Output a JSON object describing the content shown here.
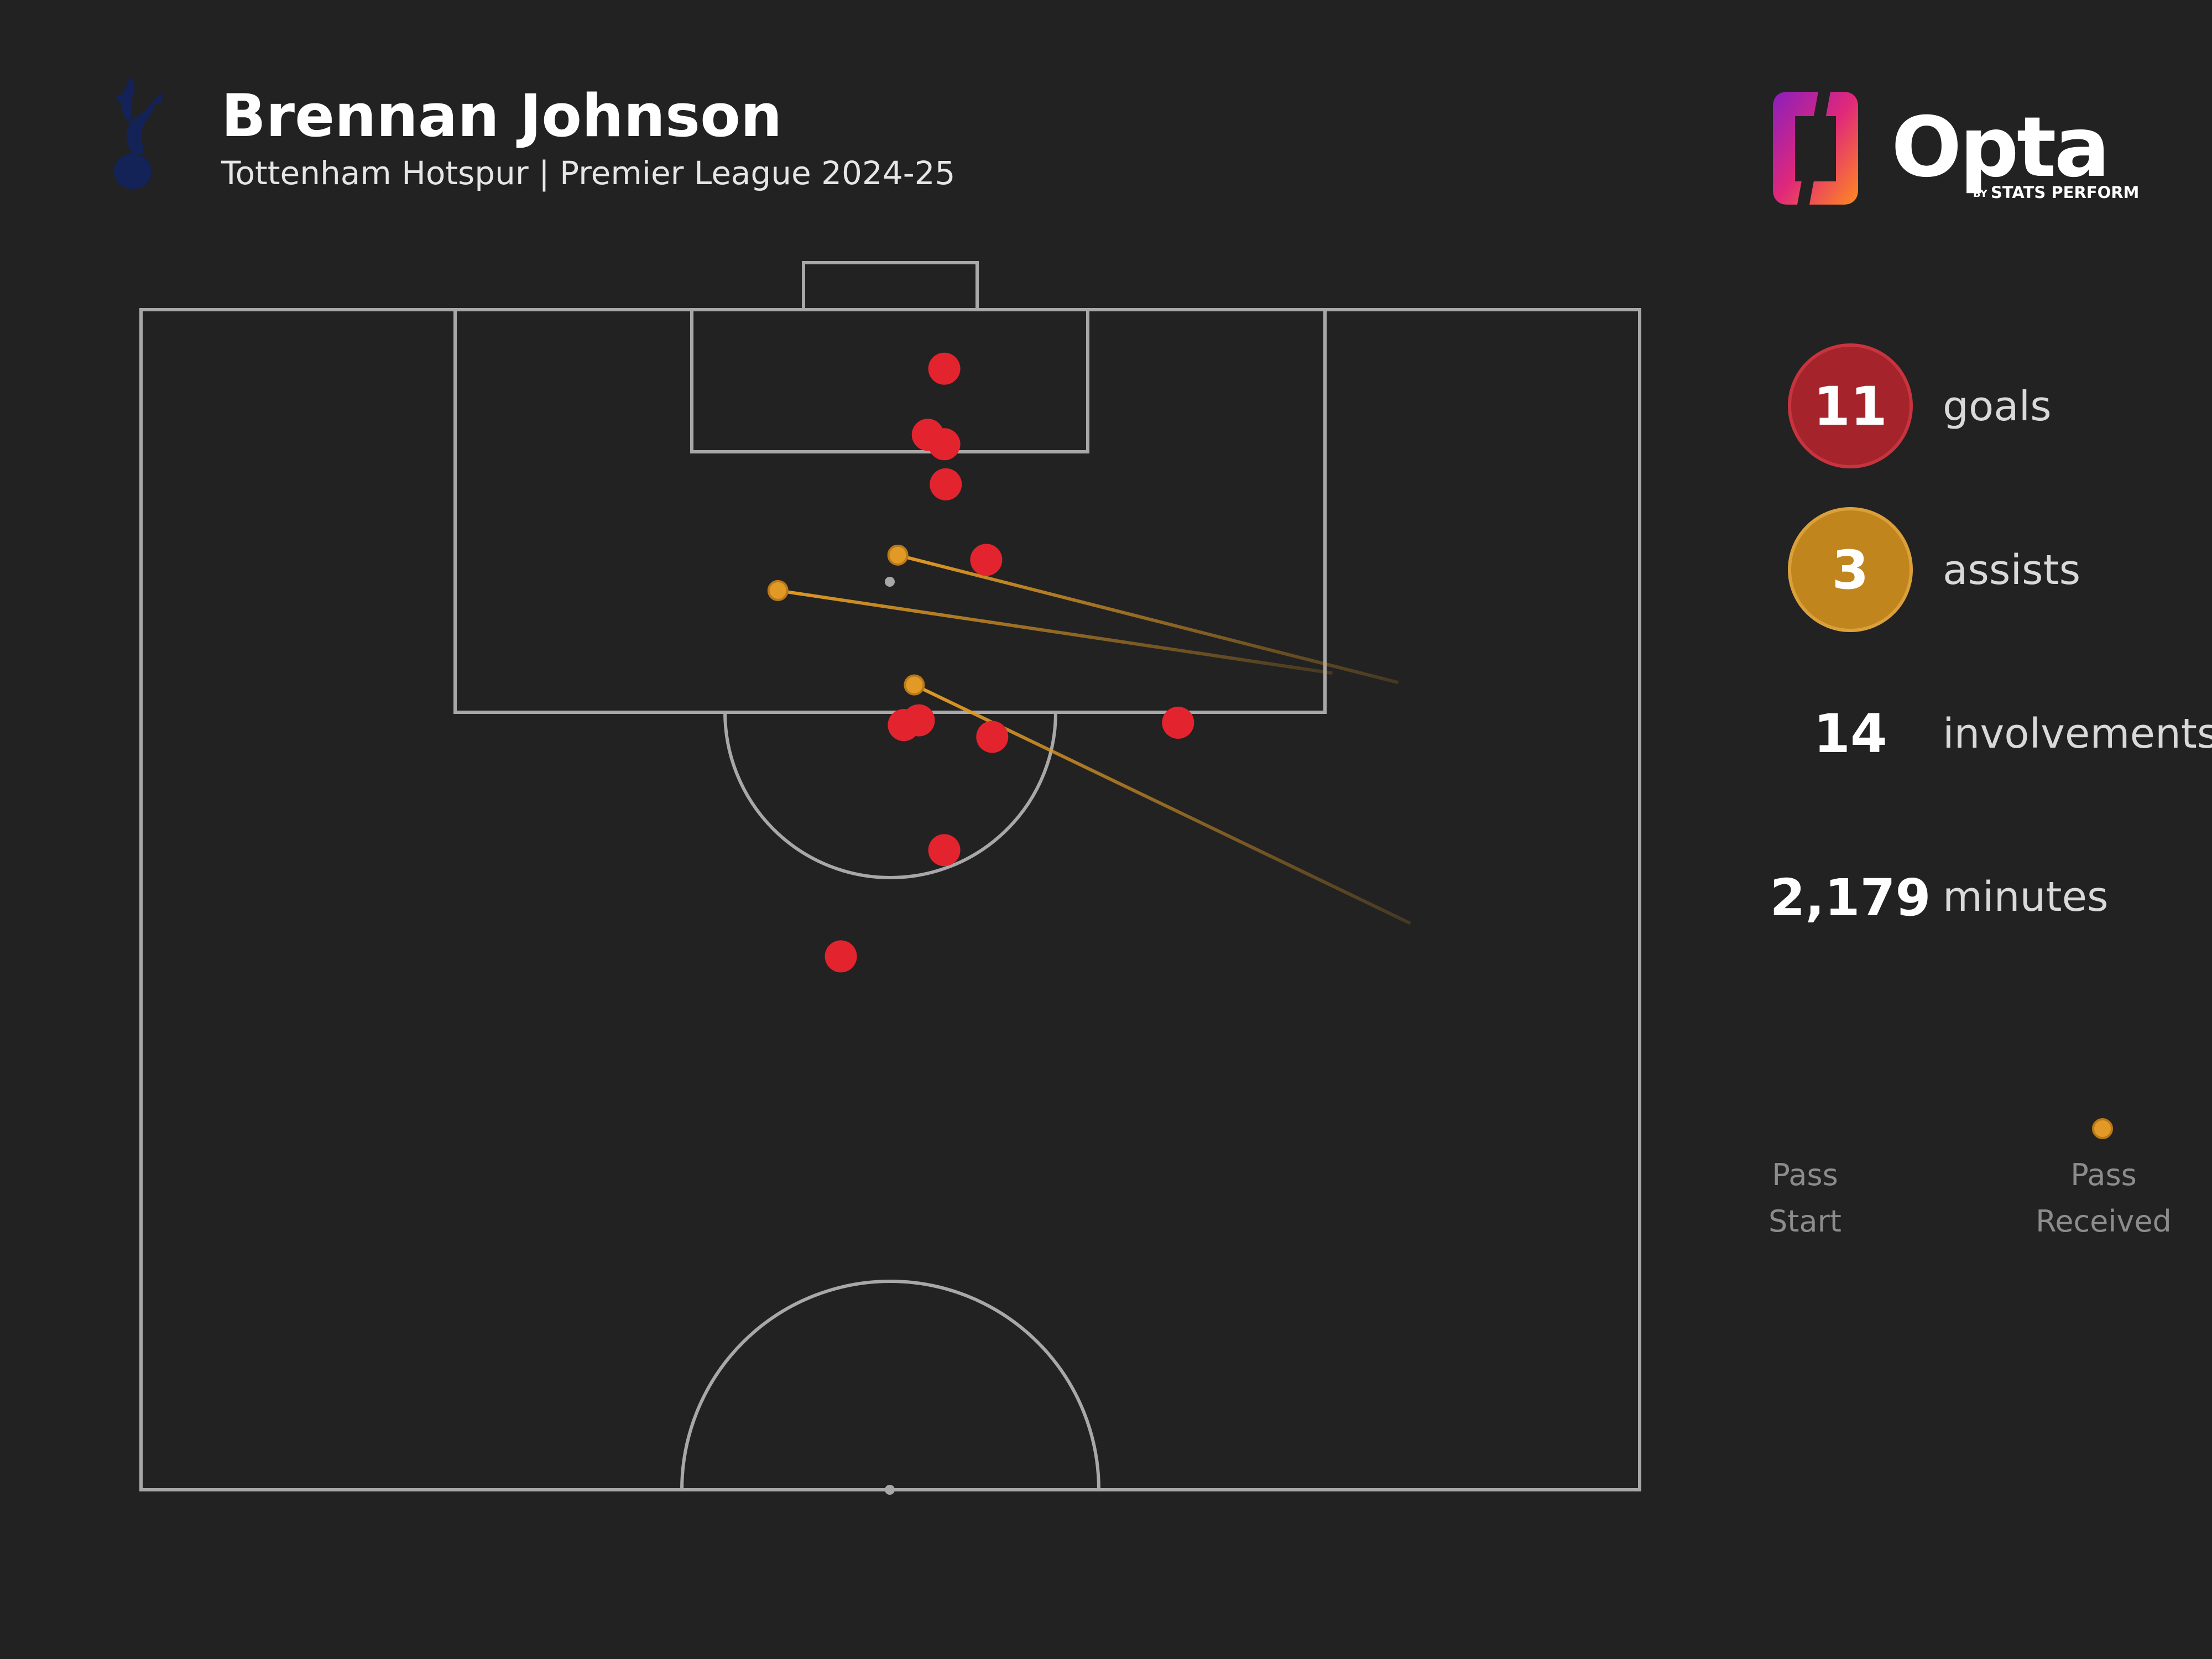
{
  "header": {
    "title": "Brennan Johnson",
    "subtitle": "Tottenham Hotspur | Premier League 2024-25",
    "club_crest_icon": "tottenham-cockerel-crest-icon"
  },
  "brand": {
    "name": "Opta",
    "by": "BY",
    "tagline": "STATS PERFORM",
    "logo_icon": "opta-logo-icon"
  },
  "stats": {
    "goals": {
      "value": "11",
      "label": "goals",
      "color": "#a5232b"
    },
    "assists": {
      "value": "3",
      "label": "assists",
      "color": "#c0861d"
    },
    "involvements": {
      "value": "14",
      "label": "involvements"
    },
    "minutes": {
      "value": "2,179",
      "label": "minutes"
    }
  },
  "legend": {
    "start_line1": "Pass",
    "start_line2": "Start",
    "end_line1": "Pass",
    "end_line2": "Received"
  },
  "colors": {
    "background": "#222222",
    "goal": "#e3242f",
    "assist": "#e19a25",
    "pitch_lines": "#a8a8a8"
  },
  "chart_data": {
    "type": "scatter",
    "pitch": "vertical-half",
    "pitch_length_units": 100,
    "pitch_width_units": 100,
    "goals": [
      {
        "x": 53.6,
        "y": 97.5
      },
      {
        "x": 52.5,
        "y": 94.7
      },
      {
        "x": 53.6,
        "y": 94.3
      },
      {
        "x": 53.7,
        "y": 92.6
      },
      {
        "x": 56.4,
        "y": 89.4
      },
      {
        "x": 50.9,
        "y": 82.4
      },
      {
        "x": 51.9,
        "y": 82.6
      },
      {
        "x": 56.8,
        "y": 81.9
      },
      {
        "x": 69.2,
        "y": 82.5
      },
      {
        "x": 53.6,
        "y": 77.1
      },
      {
        "x": 46.7,
        "y": 72.6
      }
    ],
    "assists": [
      {
        "start": {
          "x": 83.9,
          "y": 84.2
        },
        "received": {
          "x": 50.5,
          "y": 89.6
        }
      },
      {
        "start": {
          "x": 79.5,
          "y": 84.6
        },
        "received": {
          "x": 42.5,
          "y": 88.1
        }
      },
      {
        "start": {
          "x": 84.7,
          "y": 74.0
        },
        "received": {
          "x": 51.6,
          "y": 84.1
        }
      }
    ]
  }
}
